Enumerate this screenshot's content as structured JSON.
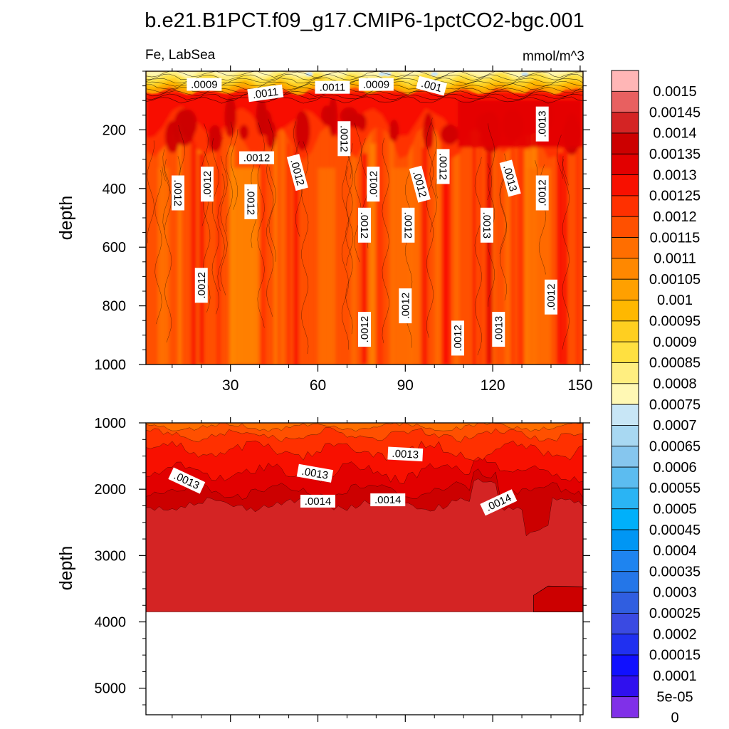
{
  "chart_data": {
    "type": "heatmap",
    "title": "b.e21.B1PCT.f09_g17.CMIP6-1pctCO2-bgc.001",
    "variable": "Fe, LabSea",
    "units": "mmol/m^3",
    "panels": [
      {
        "id": "upper",
        "ylabel": "depth",
        "ylim": [
          1000,
          0
        ],
        "yticks": [
          200,
          400,
          600,
          800,
          1000
        ],
        "xlim": [
          1,
          151
        ],
        "xticks": [
          30,
          60,
          90,
          120,
          150
        ],
        "show_xtick_labels": true,
        "contour_labels": [
          {
            "text": ".0009",
            "x": 21,
            "depth": 45,
            "angle": 0
          },
          {
            "text": ".0011",
            "x": 42,
            "depth": 75,
            "angle": -8
          },
          {
            "text": ".0011",
            "x": 65,
            "depth": 55,
            "angle": 0
          },
          {
            "text": ".0009",
            "x": 80,
            "depth": 45,
            "angle": 0
          },
          {
            "text": ".001",
            "x": 99,
            "depth": 50,
            "angle": 15
          },
          {
            "text": ".0013",
            "x": 137,
            "depth": 180,
            "angle": -90
          },
          {
            "text": ".0012",
            "x": 69,
            "depth": 230,
            "angle": 90
          },
          {
            "text": ".0012",
            "x": 39,
            "depth": 295,
            "angle": 0
          },
          {
            "text": ".0012",
            "x": 103,
            "depth": 325,
            "angle": 90
          },
          {
            "text": ".0012",
            "x": 53,
            "depth": 345,
            "angle": 75
          },
          {
            "text": ".0013",
            "x": 126,
            "depth": 365,
            "angle": 75
          },
          {
            "text": ".0012",
            "x": 22,
            "depth": 385,
            "angle": -90
          },
          {
            "text": ".0012",
            "x": 79,
            "depth": 385,
            "angle": -90
          },
          {
            "text": ".0012",
            "x": 95,
            "depth": 385,
            "angle": 75
          },
          {
            "text": ".0012",
            "x": 12,
            "depth": 415,
            "angle": 90
          },
          {
            "text": ".0012",
            "x": 37,
            "depth": 445,
            "angle": 90
          },
          {
            "text": ".0012",
            "x": 137,
            "depth": 415,
            "angle": -90
          },
          {
            "text": ".0012",
            "x": 76,
            "depth": 525,
            "angle": 90
          },
          {
            "text": ".0012",
            "x": 91,
            "depth": 525,
            "angle": 90
          },
          {
            "text": ".0013",
            "x": 118,
            "depth": 525,
            "angle": 90
          },
          {
            "text": ".0012",
            "x": 20,
            "depth": 730,
            "angle": -90
          },
          {
            "text": ".0012",
            "x": 140,
            "depth": 770,
            "angle": -90
          },
          {
            "text": ".0012",
            "x": 90,
            "depth": 800,
            "angle": -90
          },
          {
            "text": ".0012",
            "x": 76,
            "depth": 880,
            "angle": -90
          },
          {
            "text": ".0013",
            "x": 122,
            "depth": 880,
            "angle": -90
          },
          {
            "text": ".0012",
            "x": 108,
            "depth": 910,
            "angle": -90
          }
        ]
      },
      {
        "id": "lower",
        "ylabel": "depth",
        "ylim": [
          5400,
          1000
        ],
        "yticks": [
          1000,
          2000,
          3000,
          4000,
          5000
        ],
        "xlim": [
          1,
          151
        ],
        "xticks": [
          30,
          60,
          90,
          120,
          150
        ],
        "show_xtick_labels": false,
        "ocean_floor_depth": 3850,
        "contour_labels": [
          {
            "text": ".0013",
            "x": 15,
            "depth": 1870,
            "angle": 25
          },
          {
            "text": ".0013",
            "x": 59,
            "depth": 1760,
            "angle": 10
          },
          {
            "text": ".0013",
            "x": 90,
            "depth": 1470,
            "angle": 3
          },
          {
            "text": ".0014",
            "x": 60,
            "depth": 2180,
            "angle": 0
          },
          {
            "text": ".0014",
            "x": 84,
            "depth": 2160,
            "angle": 0
          },
          {
            "text": ".0014",
            "x": 122,
            "depth": 2200,
            "angle": -25
          }
        ]
      }
    ],
    "colorbar": {
      "levels": [
        "0.0015",
        "0.00145",
        "0.0014",
        "0.00135",
        "0.0013",
        "0.00125",
        "0.0012",
        "0.00115",
        "0.0011",
        "0.00105",
        "0.001",
        "0.00095",
        "0.0009",
        "0.00085",
        "0.0008",
        "0.00075",
        "0.0007",
        "0.00065",
        "0.0006",
        "0.00055",
        "0.0005",
        "0.00045",
        "0.0004",
        "0.00035",
        "0.0003",
        "0.00025",
        "0.0002",
        "0.00015",
        "0.0001",
        "5e-05",
        "0"
      ],
      "colors": [
        "#ffb6b6",
        "#e86060",
        "#d42424",
        "#cc0000",
        "#e20000",
        "#f81000",
        "#ff3000",
        "#ff5000",
        "#ff6e00",
        "#ff8800",
        "#ffa000",
        "#ffb800",
        "#ffcf20",
        "#ffe040",
        "#ffee80",
        "#fff8b4",
        "#c8e6f6",
        "#a8d8f2",
        "#86c6ee",
        "#5cbcf0",
        "#2ab4f4",
        "#00b0fa",
        "#0096f4",
        "#1e84f0",
        "#2476e8",
        "#305ee0",
        "#3a4ae2",
        "#2030f0",
        "#1010ff",
        "#3010ee",
        "#8030e8"
      ]
    }
  }
}
